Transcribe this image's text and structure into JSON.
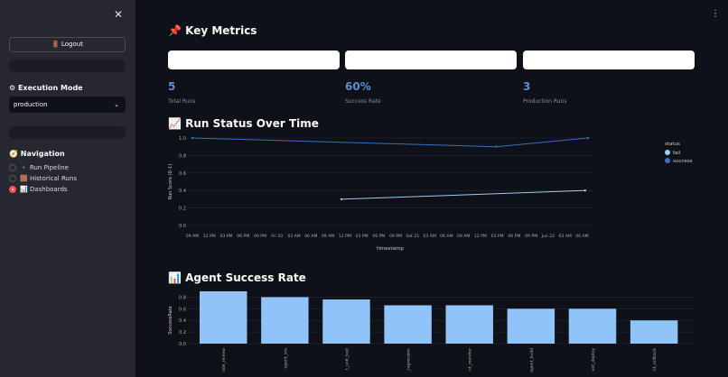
{
  "sidebar": {
    "close_icon": "close-icon",
    "logout_label": "🚪 Logout",
    "execution_mode_heading": "Execution Mode",
    "execution_mode_value": "production",
    "navigation_heading": "Navigation",
    "nav_items": [
      {
        "label": "🔹 Run Pipeline",
        "selected": false
      },
      {
        "label": "🟫 Historical Runs",
        "selected": false
      },
      {
        "label": "📊 Dashboards",
        "selected": true
      }
    ]
  },
  "main": {
    "key_metrics_title": "📌 Key Metrics",
    "metrics": [
      {
        "value": "5",
        "label": "Total Runs"
      },
      {
        "value": "60%",
        "label": "Success Rate"
      },
      {
        "value": "3",
        "label": "Production Runs"
      }
    ],
    "run_status_title": "📈 Run Status Over Time",
    "agent_success_title": "📊 Agent Success Rate"
  },
  "colors": {
    "accent": "#5b8fd8",
    "fail": "#9ecbf7",
    "success": "#3a6fbf",
    "bar": "#90c4f9"
  },
  "chart_data": [
    {
      "type": "line",
      "xlabel": "timestamp",
      "ylabel": "Run Score (0–1)",
      "ylim": [
        0,
        1
      ],
      "yticks": [
        "0.0",
        "0.2",
        "0.4",
        "0.6",
        "0.8",
        "1.0"
      ],
      "xticks": [
        "09 AM",
        "12 PM",
        "03 PM",
        "06 PM",
        "09 PM",
        "Fri 20",
        "03 AM",
        "06 AM",
        "09 AM",
        "12 PM",
        "03 PM",
        "06 PM",
        "09 PM",
        "Sat 21",
        "03 AM",
        "06 AM",
        "09 AM",
        "12 PM",
        "03 PM",
        "06 PM",
        "09 PM",
        "Jun 22",
        "03 AM",
        "06 AM"
      ],
      "legend_title": "status",
      "legend_position": "right",
      "series": [
        {
          "name": "fail",
          "points": [
            {
              "x": "Jun 20 11:00 AM",
              "y": 0.3
            },
            {
              "x": "Jun 22 05:30 AM",
              "y": 0.4
            }
          ]
        },
        {
          "name": "success",
          "points": [
            {
              "x": "Jun 19 09:00 AM",
              "y": 1.0
            },
            {
              "x": "Jun 21 02:00 PM",
              "y": 0.9
            },
            {
              "x": "Jun 22 06:00 AM",
              "y": 1.0
            }
          ]
        }
      ],
      "grid": true
    },
    {
      "type": "bar",
      "ylabel": "SuccessRate",
      "ylim": [
        0,
        0.9
      ],
      "yticks": [
        "0.0",
        "0.2",
        "0.4",
        "0.6",
        "0.8"
      ],
      "categories": [
        "ode_review",
        "agent_sre",
        "t_unit_test",
        "_regression",
        "nt_monitor",
        "agent_build",
        "ent_deploy",
        "nt_rollback"
      ],
      "values": [
        0.9,
        0.8,
        0.76,
        0.66,
        0.66,
        0.6,
        0.6,
        0.4
      ],
      "grid": true
    }
  ]
}
